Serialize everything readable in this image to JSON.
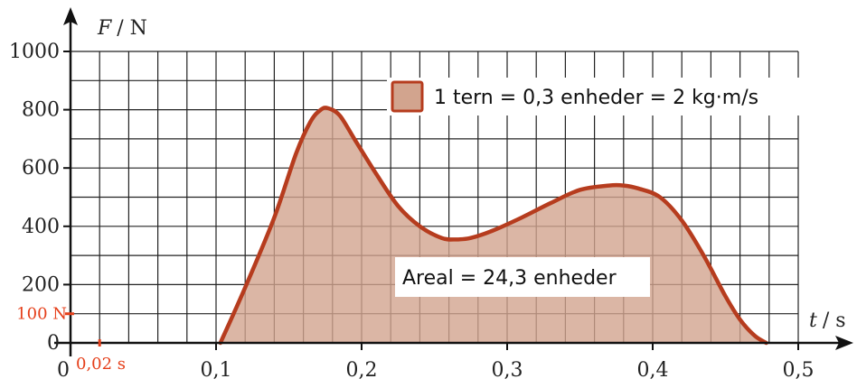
{
  "chart_data": {
    "type": "area",
    "xlabel_symbol": "t",
    "xlabel_unit": "/ s",
    "ylabel_symbol": "F",
    "ylabel_unit": "/ N",
    "x_ticks": [
      0.1,
      0.2,
      0.3,
      0.4,
      0.5
    ],
    "x_tick_labels": [
      "0,1",
      "0,2",
      "0,3",
      "0,4",
      "0,5"
    ],
    "y_ticks": [
      0,
      200,
      400,
      600,
      800,
      1000
    ],
    "y_tick_labels": [
      "0",
      "200",
      "400",
      "600",
      "800",
      "1000"
    ],
    "origin_label": "0",
    "xlim": [
      0,
      0.52
    ],
    "ylim": [
      0,
      1000
    ],
    "grid": true,
    "grid_step_x": 0.02,
    "grid_step_y": 100,
    "series": [
      {
        "x": [
          0.103,
          0.12,
          0.14,
          0.155,
          0.165,
          0.172,
          0.177,
          0.185,
          0.195,
          0.21,
          0.225,
          0.24,
          0.255,
          0.265,
          0.275,
          0.29,
          0.31,
          0.33,
          0.35,
          0.37,
          0.38,
          0.39,
          0.405,
          0.42,
          0.435,
          0.45,
          0.46,
          0.47,
          0.478
        ],
        "y": [
          0,
          190,
          430,
          650,
          760,
          800,
          805,
          780,
          700,
          580,
          470,
          400,
          360,
          355,
          360,
          385,
          430,
          480,
          525,
          540,
          540,
          530,
          500,
          420,
          300,
          160,
          80,
          25,
          0
        ]
      }
    ],
    "annotations": {
      "area_label": "Areal = 24,3 enheder",
      "unit_square_label": "1 tern = 0,3 enheder = 2 kg·m/s",
      "x_step_label": "0,02 s",
      "y_step_label": "100 N"
    },
    "colors": {
      "curve": "#b63c1e",
      "fill": "#d2a48e",
      "grid": "#222222",
      "highlight": "#e53f1a"
    }
  }
}
